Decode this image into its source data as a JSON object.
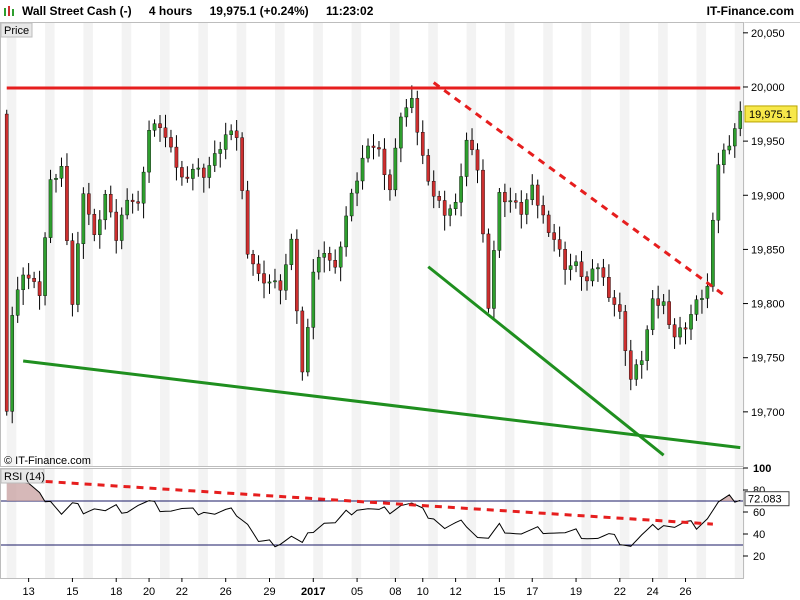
{
  "header": {
    "instrument": "Wall Street Cash (-)",
    "timeframe": "4 hours",
    "price_change": "19,975.1 (+0.24%)",
    "time": "11:23:02",
    "brand": "IT-Finance.com"
  },
  "price_panel": {
    "label": "Price",
    "watermark": "© IT-Finance.com",
    "last_price_label": "19,975.1"
  },
  "rsi_panel": {
    "label": "RSI (14)",
    "last_value_label": "72.083"
  },
  "colors": {
    "bull": "#2e9e2e",
    "bear": "#cc2f2f",
    "wick": "#000000",
    "resistance": "#e61e1e",
    "support": "#1f8f1f",
    "rsi_line": "#000000",
    "rsi_trend": "#e61e1e",
    "rsi_level": "#1a1a66",
    "price_tag_bg": "#f7e84a"
  },
  "chart_data": [
    {
      "type": "candlestick",
      "ylim": [
        19650,
        20060
      ],
      "y_ticks": [
        19700,
        19750,
        19800,
        19850,
        19900,
        19950,
        20000,
        20050
      ],
      "y_tick_labels": [
        "19,700",
        "19,750",
        "19,800",
        "19,850",
        "19,900",
        "19,950",
        "20,000",
        "20,050"
      ],
      "x_tick_labels": [
        "13",
        "15",
        "18",
        "20",
        "22",
        "26",
        "29",
        "2017",
        "05",
        "08",
        "10",
        "12",
        "15",
        "17",
        "19",
        "22",
        "24",
        "26"
      ],
      "x_tick_index": [
        4,
        12,
        20,
        26,
        32,
        40,
        48,
        56,
        64,
        71,
        76,
        82,
        90,
        96,
        104,
        112,
        118,
        124
      ],
      "last_price": 19975.1,
      "anchors": [
        [
          0,
          19705
        ],
        [
          1,
          19790
        ],
        [
          3,
          19830
        ],
        [
          6,
          19810
        ],
        [
          8,
          19910
        ],
        [
          10,
          19925
        ],
        [
          12,
          19800
        ],
        [
          14,
          19905
        ],
        [
          16,
          19860
        ],
        [
          18,
          19900
        ],
        [
          20,
          19860
        ],
        [
          22,
          19900
        ],
        [
          24,
          19890
        ],
        [
          26,
          19960
        ],
        [
          28,
          19965
        ],
        [
          30,
          19940
        ],
        [
          32,
          19915
        ],
        [
          34,
          19925
        ],
        [
          36,
          19920
        ],
        [
          38,
          19935
        ],
        [
          40,
          19955
        ],
        [
          42,
          19955
        ],
        [
          44,
          19850
        ],
        [
          46,
          19825
        ],
        [
          48,
          19820
        ],
        [
          50,
          19815
        ],
        [
          52,
          19855
        ],
        [
          54,
          19735
        ],
        [
          56,
          19830
        ],
        [
          58,
          19850
        ],
        [
          60,
          19830
        ],
        [
          62,
          19880
        ],
        [
          64,
          19915
        ],
        [
          66,
          19950
        ],
        [
          68,
          19940
        ],
        [
          70,
          19905
        ],
        [
          72,
          19975
        ],
        [
          74,
          19985
        ],
        [
          76,
          19935
        ],
        [
          78,
          19900
        ],
        [
          80,
          19885
        ],
        [
          82,
          19890
        ],
        [
          84,
          19950
        ],
        [
          86,
          19925
        ],
        [
          88,
          19800
        ],
        [
          90,
          19900
        ],
        [
          92,
          19895
        ],
        [
          94,
          19885
        ],
        [
          96,
          19905
        ],
        [
          98,
          19880
        ],
        [
          100,
          19860
        ],
        [
          102,
          19835
        ],
        [
          104,
          19835
        ],
        [
          106,
          19820
        ],
        [
          108,
          19835
        ],
        [
          110,
          19810
        ],
        [
          112,
          19790
        ],
        [
          114,
          19730
        ],
        [
          116,
          19750
        ],
        [
          118,
          19800
        ],
        [
          120,
          19800
        ],
        [
          122,
          19770
        ],
        [
          124,
          19780
        ],
        [
          126,
          19800
        ],
        [
          128,
          19815
        ],
        [
          130,
          19930
        ],
        [
          132,
          19950
        ],
        [
          134,
          19975
        ]
      ],
      "trendlines": [
        {
          "name": "resistance",
          "x": [
            0,
            134
          ],
          "y": [
            19999,
            19999
          ],
          "style": "solid",
          "color": "#e61e1e"
        },
        {
          "name": "falling-resistance",
          "x": [
            78,
            131
          ],
          "y": [
            20004,
            19808
          ],
          "style": "dashed",
          "color": "#e61e1e"
        },
        {
          "name": "lower-support",
          "x": [
            3,
            134
          ],
          "y": [
            19747,
            19667
          ],
          "style": "solid",
          "color": "#1f8f1f"
        },
        {
          "name": "steep-support",
          "x": [
            77,
            120
          ],
          "y": [
            19834,
            19660
          ],
          "style": "solid",
          "color": "#1f8f1f"
        }
      ]
    },
    {
      "type": "line",
      "title": "RSI (14)",
      "ylim": [
        0,
        100
      ],
      "y_ticks": [
        20,
        40,
        60,
        80,
        100
      ],
      "y_tick_labels": [
        "20",
        "40",
        "60",
        "80",
        "100"
      ],
      "levels": [
        70,
        30
      ],
      "last_value": 72.083,
      "anchors": [
        [
          0,
          90
        ],
        [
          2,
          88
        ],
        [
          4,
          85
        ],
        [
          6,
          74
        ],
        [
          8,
          72
        ],
        [
          10,
          58
        ],
        [
          12,
          66
        ],
        [
          14,
          62
        ],
        [
          16,
          64
        ],
        [
          18,
          60
        ],
        [
          20,
          63
        ],
        [
          22,
          62
        ],
        [
          24,
          66
        ],
        [
          26,
          68
        ],
        [
          28,
          64
        ],
        [
          30,
          62
        ],
        [
          32,
          62
        ],
        [
          34,
          60
        ],
        [
          36,
          62
        ],
        [
          38,
          58
        ],
        [
          40,
          60
        ],
        [
          42,
          60
        ],
        [
          44,
          50
        ],
        [
          46,
          32
        ],
        [
          48,
          31
        ],
        [
          50,
          33
        ],
        [
          52,
          38
        ],
        [
          54,
          30
        ],
        [
          56,
          45
        ],
        [
          58,
          51
        ],
        [
          60,
          49
        ],
        [
          62,
          58
        ],
        [
          64,
          64
        ],
        [
          66,
          63
        ],
        [
          68,
          60
        ],
        [
          70,
          62
        ],
        [
          72,
          67
        ],
        [
          74,
          67
        ],
        [
          76,
          60
        ],
        [
          78,
          56
        ],
        [
          80,
          45
        ],
        [
          82,
          48
        ],
        [
          84,
          50
        ],
        [
          86,
          38
        ],
        [
          88,
          35
        ],
        [
          90,
          46
        ],
        [
          92,
          43
        ],
        [
          94,
          40
        ],
        [
          96,
          42
        ],
        [
          98,
          44
        ],
        [
          100,
          42
        ],
        [
          102,
          40
        ],
        [
          104,
          41
        ],
        [
          106,
          38
        ],
        [
          108,
          36
        ],
        [
          110,
          38
        ],
        [
          112,
          34
        ],
        [
          114,
          30
        ],
        [
          116,
          38
        ],
        [
          118,
          45
        ],
        [
          120,
          50
        ],
        [
          122,
          46
        ],
        [
          124,
          49
        ],
        [
          126,
          48
        ],
        [
          128,
          55
        ],
        [
          130,
          68
        ],
        [
          132,
          72
        ],
        [
          134,
          73
        ]
      ],
      "trendline": {
        "x": [
          0,
          129
        ],
        "y": [
          90,
          49
        ],
        "style": "dashed",
        "color": "#e61e1e"
      }
    }
  ]
}
